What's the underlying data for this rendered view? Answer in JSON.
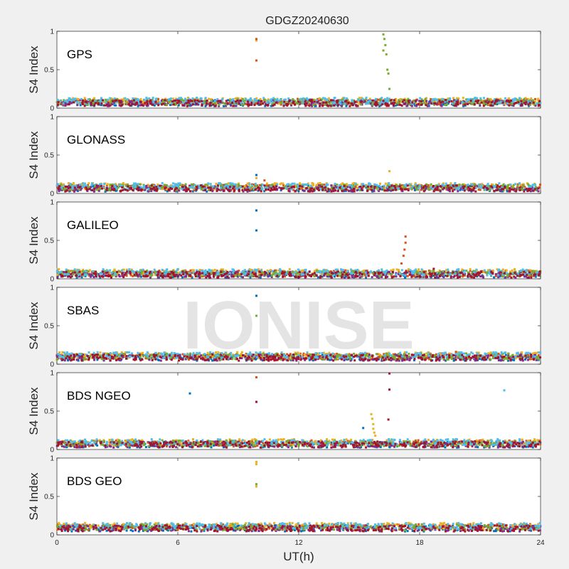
{
  "chart_data": {
    "type": "scatter",
    "title": "GDGZ20240630",
    "xlabel": "UT(h)",
    "ylabel": "S4 Index",
    "xlim": [
      0,
      24
    ],
    "ylim": [
      0,
      1
    ],
    "xticks": [
      "0",
      "6",
      "12",
      "18",
      "24"
    ],
    "yticks": [
      "0",
      "0.5",
      "1"
    ],
    "watermark": "IONISE",
    "grid": false,
    "series_colors": [
      "#0072BD",
      "#D95319",
      "#EDB120",
      "#7E2F8E",
      "#77AC30",
      "#4DBEEE",
      "#A2142F"
    ],
    "panels": [
      {
        "name": "GPS",
        "baseline": 0.08,
        "spikes": [
          {
            "x": 9.9,
            "y": 0.88,
            "color": "#EDB120"
          },
          {
            "x": 9.9,
            "y": 0.9,
            "color": "#D95319"
          },
          {
            "x": 9.9,
            "y": 0.62,
            "color": "#D95319"
          },
          {
            "x": 16.2,
            "y": 0.96,
            "color": "#77AC30"
          },
          {
            "x": 16.25,
            "y": 0.9,
            "color": "#77AC30"
          },
          {
            "x": 16.3,
            "y": 0.82,
            "color": "#77AC30"
          },
          {
            "x": 16.2,
            "y": 0.75,
            "color": "#77AC30"
          },
          {
            "x": 16.35,
            "y": 0.7,
            "color": "#77AC30"
          },
          {
            "x": 16.4,
            "y": 0.5,
            "color": "#77AC30"
          },
          {
            "x": 16.45,
            "y": 0.45,
            "color": "#77AC30"
          },
          {
            "x": 16.5,
            "y": 0.25,
            "color": "#77AC30"
          }
        ]
      },
      {
        "name": "GLONASS",
        "baseline": 0.08,
        "spikes": [
          {
            "x": 9.9,
            "y": 0.24,
            "color": "#0072BD"
          },
          {
            "x": 9.9,
            "y": 0.2,
            "color": "#EDB120"
          },
          {
            "x": 10.3,
            "y": 0.17,
            "color": "#D95319"
          },
          {
            "x": 16.5,
            "y": 0.29,
            "color": "#EDB120"
          }
        ]
      },
      {
        "name": "GALILEO",
        "baseline": 0.07,
        "spikes": [
          {
            "x": 9.9,
            "y": 0.89,
            "color": "#0072BD"
          },
          {
            "x": 9.9,
            "y": 0.63,
            "color": "#0072BD"
          },
          {
            "x": 17.3,
            "y": 0.55,
            "color": "#D95319"
          },
          {
            "x": 17.3,
            "y": 0.47,
            "color": "#D95319"
          },
          {
            "x": 17.25,
            "y": 0.38,
            "color": "#D95319"
          },
          {
            "x": 17.2,
            "y": 0.3,
            "color": "#D95319"
          },
          {
            "x": 17.1,
            "y": 0.2,
            "color": "#D95319"
          },
          {
            "x": 18.7,
            "y": 0.13,
            "color": "#A2142F"
          }
        ]
      },
      {
        "name": "SBAS",
        "baseline": 0.1,
        "spikes": [
          {
            "x": 9.9,
            "y": 0.89,
            "color": "#0072BD"
          },
          {
            "x": 9.9,
            "y": 0.63,
            "color": "#77AC30"
          },
          {
            "x": 19.8,
            "y": 0.16,
            "color": "#D95319"
          }
        ]
      },
      {
        "name": "BDS NGEO",
        "baseline": 0.08,
        "spikes": [
          {
            "x": 6.6,
            "y": 0.73,
            "color": "#0072BD"
          },
          {
            "x": 9.9,
            "y": 0.94,
            "color": "#D95319"
          },
          {
            "x": 9.9,
            "y": 0.62,
            "color": "#A2142F"
          },
          {
            "x": 15.2,
            "y": 0.28,
            "color": "#0072BD"
          },
          {
            "x": 15.6,
            "y": 0.46,
            "color": "#EDB120"
          },
          {
            "x": 15.65,
            "y": 0.4,
            "color": "#EDB120"
          },
          {
            "x": 15.7,
            "y": 0.33,
            "color": "#EDB120"
          },
          {
            "x": 15.7,
            "y": 0.27,
            "color": "#EDB120"
          },
          {
            "x": 15.75,
            "y": 0.22,
            "color": "#EDB120"
          },
          {
            "x": 15.8,
            "y": 0.18,
            "color": "#EDB120"
          },
          {
            "x": 16.5,
            "y": 0.99,
            "color": "#A2142F"
          },
          {
            "x": 16.5,
            "y": 0.78,
            "color": "#A2142F"
          },
          {
            "x": 16.45,
            "y": 0.39,
            "color": "#A2142F"
          },
          {
            "x": 22.2,
            "y": 0.77,
            "color": "#4DBEEE"
          }
        ]
      },
      {
        "name": "BDS GEO",
        "baseline": 0.1,
        "spikes": [
          {
            "x": 9.9,
            "y": 0.95,
            "color": "#EDB120"
          },
          {
            "x": 9.9,
            "y": 0.92,
            "color": "#EDB120"
          },
          {
            "x": 9.9,
            "y": 0.66,
            "color": "#77AC30"
          },
          {
            "x": 9.9,
            "y": 0.63,
            "color": "#EDB120"
          }
        ]
      }
    ]
  }
}
